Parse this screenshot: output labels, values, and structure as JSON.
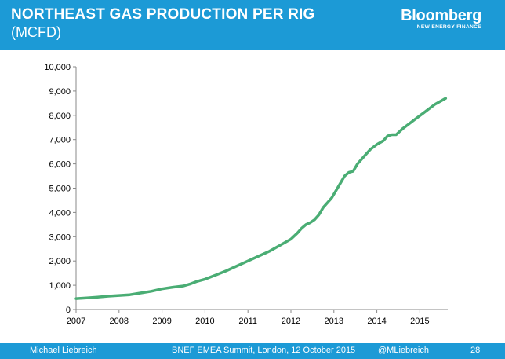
{
  "header": {
    "title": "NORTHEAST GAS PRODUCTION PER RIG",
    "subtitle": "(MCFD)",
    "logo_name": "Bloomberg",
    "logo_sub": "NEW ENERGY FINANCE",
    "background": "#1c9ad6"
  },
  "footer": {
    "author": "Michael Liebreich",
    "event": "BNEF EMEA Summit, London, 12 October 2015",
    "handle": "@MLiebreich",
    "page": "28"
  },
  "chart_data": {
    "type": "line",
    "title": "NORTHEAST GAS PRODUCTION PER RIG",
    "subtitle": "(MCFD)",
    "xlabel": "",
    "ylabel": "",
    "xlim": [
      2007,
      2015.65
    ],
    "ylim": [
      0,
      10000
    ],
    "x_ticks": [
      "2007",
      "2008",
      "2009",
      "2010",
      "2011",
      "2012",
      "2013",
      "2014",
      "2015"
    ],
    "y_ticks": [
      "0",
      "1,000",
      "2,000",
      "3,000",
      "4,000",
      "5,000",
      "6,000",
      "7,000",
      "8,000",
      "9,000",
      "10,000"
    ],
    "grid": false,
    "legend": "none",
    "series": [
      {
        "color": "#4aad74",
        "x": [
          2007.0,
          2007.25,
          2007.5,
          2007.75,
          2008.0,
          2008.25,
          2008.5,
          2008.75,
          2009.0,
          2009.25,
          2009.5,
          2009.65,
          2009.8,
          2010.0,
          2010.25,
          2010.5,
          2010.75,
          2011.0,
          2011.25,
          2011.5,
          2011.75,
          2012.0,
          2012.15,
          2012.25,
          2012.35,
          2012.45,
          2012.55,
          2012.65,
          2012.75,
          2012.85,
          2012.95,
          2013.05,
          2013.15,
          2013.25,
          2013.35,
          2013.45,
          2013.55,
          2013.7,
          2013.85,
          2014.0,
          2014.15,
          2014.25,
          2014.35,
          2014.45,
          2014.6,
          2014.75,
          2014.9,
          2015.05,
          2015.2,
          2015.35,
          2015.5,
          2015.6
        ],
        "y": [
          450,
          480,
          510,
          550,
          580,
          610,
          680,
          750,
          850,
          920,
          970,
          1050,
          1150,
          1250,
          1420,
          1600,
          1800,
          2000,
          2200,
          2400,
          2650,
          2900,
          3150,
          3350,
          3500,
          3580,
          3700,
          3900,
          4200,
          4400,
          4600,
          4900,
          5200,
          5500,
          5650,
          5700,
          6000,
          6300,
          6600,
          6800,
          6950,
          7150,
          7200,
          7200,
          7450,
          7650,
          7850,
          8050,
          8250,
          8450,
          8600,
          8700
        ]
      }
    ]
  }
}
